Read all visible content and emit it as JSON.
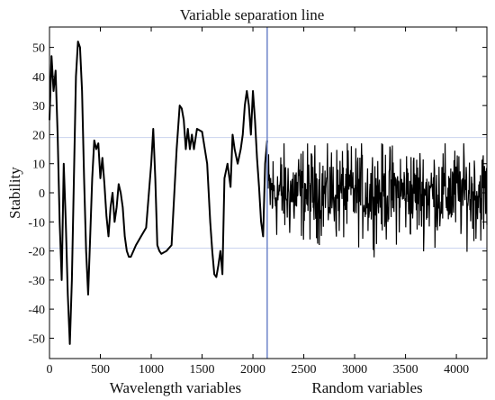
{
  "chart_data": {
    "type": "line",
    "title": "",
    "xlabel": "",
    "ylabel": "Stability",
    "xlim": [
      0,
      4300
    ],
    "ylim": [
      -57,
      57
    ],
    "grid": false,
    "legend": "none",
    "x_ticks": [
      0,
      500,
      1000,
      1500,
      2000,
      2500,
      3000,
      3500,
      4000
    ],
    "y_ticks": [
      -50,
      -40,
      -30,
      -20,
      -10,
      0,
      10,
      20,
      30,
      40,
      50
    ],
    "threshold_lines": [
      19,
      -19
    ],
    "separation_x": 2140,
    "annotations": {
      "separation_label": "Variable separation line",
      "wavelength_label": "Wavelength variables",
      "random_label": "Random variables"
    },
    "colors": {
      "line": "#000000",
      "separation": "#6f86c9",
      "threshold": "#c9d2ee"
    },
    "wavelength_series": {
      "x": [
        0,
        20,
        40,
        60,
        80,
        100,
        120,
        140,
        160,
        180,
        200,
        220,
        240,
        260,
        280,
        300,
        320,
        340,
        360,
        380,
        400,
        420,
        440,
        460,
        480,
        500,
        520,
        540,
        560,
        580,
        600,
        620,
        640,
        660,
        680,
        700,
        720,
        740,
        760,
        780,
        800,
        850,
        900,
        950,
        1000,
        1020,
        1040,
        1060,
        1080,
        1100,
        1150,
        1200,
        1250,
        1280,
        1300,
        1320,
        1340,
        1360,
        1380,
        1400,
        1420,
        1450,
        1500,
        1550,
        1580,
        1600,
        1620,
        1640,
        1660,
        1680,
        1700,
        1720,
        1750,
        1780,
        1800,
        1820,
        1850,
        1880,
        1900,
        1920,
        1940,
        1960,
        1980,
        2000,
        2020,
        2040,
        2060,
        2080,
        2100,
        2120,
        2140
      ],
      "y": [
        25,
        47,
        35,
        42,
        20,
        -10,
        -30,
        10,
        -10,
        -35,
        -52,
        -30,
        5,
        40,
        52,
        50,
        35,
        5,
        -20,
        -35,
        -15,
        5,
        18,
        15,
        17,
        5,
        12,
        3,
        -8,
        -15,
        -5,
        0,
        -10,
        -5,
        3,
        0,
        -5,
        -15,
        -20,
        -22,
        -22,
        -18,
        -15,
        -12,
        10,
        22,
        5,
        -18,
        -20,
        -21,
        -20,
        -18,
        15,
        30,
        29,
        25,
        15,
        22,
        15,
        20,
        15,
        22,
        21,
        10,
        -10,
        -20,
        -28,
        -29,
        -25,
        -20,
        -28,
        5,
        10,
        2,
        20,
        15,
        10,
        15,
        20,
        30,
        35,
        30,
        20,
        35,
        25,
        12,
        2,
        -10,
        -15,
        10,
        18
      ]
    },
    "random_series": {
      "x_start": 2150,
      "x_end": 4300,
      "n_points": 540,
      "y_range": [
        -24,
        17
      ],
      "typical_amplitude": 12
    }
  }
}
